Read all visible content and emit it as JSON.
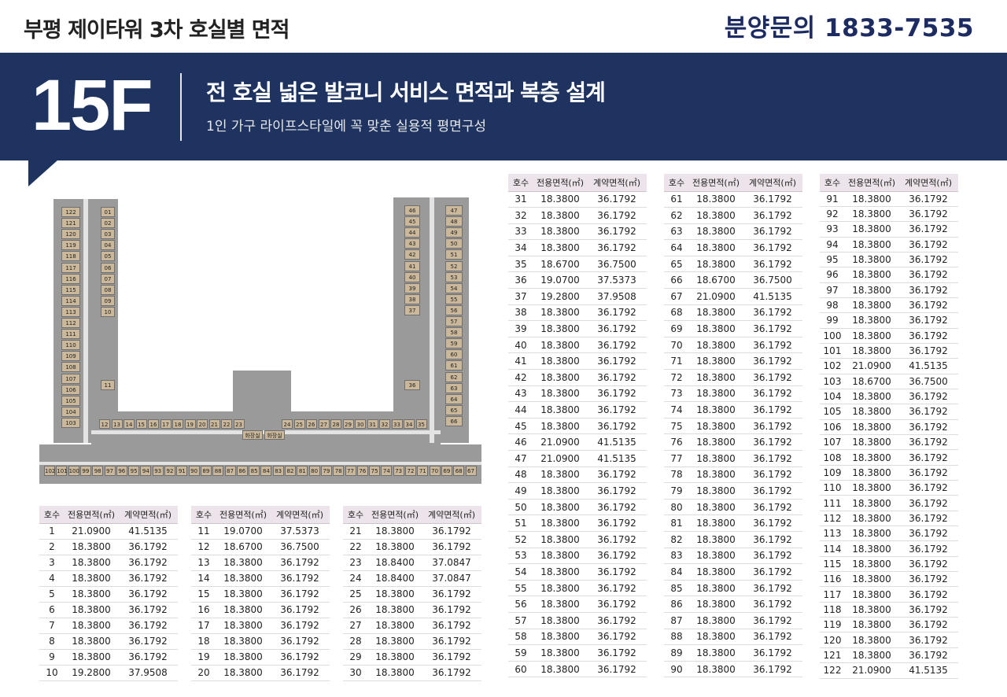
{
  "header": {
    "title": "부평 제이타워 3차 호실별 면적",
    "contact": "분양문의 1833-7535"
  },
  "banner": {
    "floor": "15F",
    "headline": "전 호실 넓은 발코니 서비스 면적과 복층 설계",
    "subline": "1인 가구 라이프스타일에 꼭 맞춘 실용적 평면구성"
  },
  "table_headers": {
    "no": "호수",
    "exclusive": "전용면적(㎡)",
    "contract": "계약면적(㎡)"
  },
  "floor_plan": {
    "left_wing_units": [
      "122",
      "121",
      "120",
      "119",
      "118",
      "117",
      "116",
      "115",
      "114",
      "113",
      "112",
      "111",
      "110",
      "109",
      "108",
      "107",
      "106",
      "105",
      "104",
      "103"
    ],
    "left_inner_units": [
      "01",
      "02",
      "03",
      "04",
      "05",
      "06",
      "07",
      "08",
      "09",
      "10",
      "11"
    ],
    "right_wing_units": [
      "47",
      "48",
      "49",
      "50",
      "51",
      "52",
      "53",
      "54",
      "55",
      "56",
      "57",
      "58",
      "59",
      "60",
      "61",
      "62",
      "63",
      "64",
      "65",
      "66"
    ],
    "right_inner_units": [
      "46",
      "45",
      "44",
      "43",
      "42",
      "41",
      "40",
      "39",
      "38",
      "37",
      "36"
    ],
    "middle_units": [
      "12",
      "13",
      "14",
      "15",
      "16",
      "17",
      "18",
      "19",
      "20",
      "21",
      "22",
      "23",
      "24",
      "25",
      "26",
      "27",
      "28",
      "29",
      "30",
      "31",
      "32",
      "33",
      "34",
      "35"
    ],
    "bottom_units": [
      "102",
      "101",
      "100",
      "99",
      "98",
      "97",
      "96",
      "95",
      "94",
      "93",
      "92",
      "91",
      "90",
      "89",
      "88",
      "87",
      "86",
      "85",
      "84",
      "83",
      "82",
      "81",
      "80",
      "79",
      "78",
      "77",
      "76",
      "75",
      "74",
      "73",
      "72",
      "71",
      "70",
      "69",
      "68",
      "67"
    ],
    "room_labels": [
      "화장실",
      "화장실"
    ]
  },
  "tables": [
    {
      "rows": [
        [
          "1",
          "21.0900",
          "41.5135"
        ],
        [
          "2",
          "18.3800",
          "36.1792"
        ],
        [
          "3",
          "18.3800",
          "36.1792"
        ],
        [
          "4",
          "18.3800",
          "36.1792"
        ],
        [
          "5",
          "18.3800",
          "36.1792"
        ],
        [
          "6",
          "18.3800",
          "36.1792"
        ],
        [
          "7",
          "18.3800",
          "36.1792"
        ],
        [
          "8",
          "18.3800",
          "36.1792"
        ],
        [
          "9",
          "18.3800",
          "36.1792"
        ],
        [
          "10",
          "19.2800",
          "37.9508"
        ]
      ]
    },
    {
      "rows": [
        [
          "11",
          "19.0700",
          "37.5373"
        ],
        [
          "12",
          "18.6700",
          "36.7500"
        ],
        [
          "13",
          "18.3800",
          "36.1792"
        ],
        [
          "14",
          "18.3800",
          "36.1792"
        ],
        [
          "15",
          "18.3800",
          "36.1792"
        ],
        [
          "16",
          "18.3800",
          "36.1792"
        ],
        [
          "17",
          "18.3800",
          "36.1792"
        ],
        [
          "18",
          "18.3800",
          "36.1792"
        ],
        [
          "19",
          "18.3800",
          "36.1792"
        ],
        [
          "20",
          "18.3800",
          "36.1792"
        ]
      ]
    },
    {
      "rows": [
        [
          "21",
          "18.3800",
          "36.1792"
        ],
        [
          "22",
          "18.3800",
          "36.1792"
        ],
        [
          "23",
          "18.8400",
          "37.0847"
        ],
        [
          "24",
          "18.8400",
          "37.0847"
        ],
        [
          "25",
          "18.3800",
          "36.1792"
        ],
        [
          "26",
          "18.3800",
          "36.1792"
        ],
        [
          "27",
          "18.3800",
          "36.1792"
        ],
        [
          "28",
          "18.3800",
          "36.1792"
        ],
        [
          "29",
          "18.3800",
          "36.1792"
        ],
        [
          "30",
          "18.3800",
          "36.1792"
        ]
      ]
    },
    {
      "rows": [
        [
          "31",
          "18.3800",
          "36.1792"
        ],
        [
          "32",
          "18.3800",
          "36.1792"
        ],
        [
          "33",
          "18.3800",
          "36.1792"
        ],
        [
          "34",
          "18.3800",
          "36.1792"
        ],
        [
          "35",
          "18.6700",
          "36.7500"
        ],
        [
          "36",
          "19.0700",
          "37.5373"
        ],
        [
          "37",
          "19.2800",
          "37.9508"
        ],
        [
          "38",
          "18.3800",
          "36.1792"
        ],
        [
          "39",
          "18.3800",
          "36.1792"
        ],
        [
          "40",
          "18.3800",
          "36.1792"
        ],
        [
          "41",
          "18.3800",
          "36.1792"
        ],
        [
          "42",
          "18.3800",
          "36.1792"
        ],
        [
          "43",
          "18.3800",
          "36.1792"
        ],
        [
          "44",
          "18.3800",
          "36.1792"
        ],
        [
          "45",
          "18.3800",
          "36.1792"
        ],
        [
          "46",
          "21.0900",
          "41.5135"
        ],
        [
          "47",
          "21.0900",
          "41.5135"
        ],
        [
          "48",
          "18.3800",
          "36.1792"
        ],
        [
          "49",
          "18.3800",
          "36.1792"
        ],
        [
          "50",
          "18.3800",
          "36.1792"
        ],
        [
          "51",
          "18.3800",
          "36.1792"
        ],
        [
          "52",
          "18.3800",
          "36.1792"
        ],
        [
          "53",
          "18.3800",
          "36.1792"
        ],
        [
          "54",
          "18.3800",
          "36.1792"
        ],
        [
          "55",
          "18.3800",
          "36.1792"
        ],
        [
          "56",
          "18.3800",
          "36.1792"
        ],
        [
          "57",
          "18.3800",
          "36.1792"
        ],
        [
          "58",
          "18.3800",
          "36.1792"
        ],
        [
          "59",
          "18.3800",
          "36.1792"
        ],
        [
          "60",
          "18.3800",
          "36.1792"
        ]
      ]
    },
    {
      "rows": [
        [
          "61",
          "18.3800",
          "36.1792"
        ],
        [
          "62",
          "18.3800",
          "36.1792"
        ],
        [
          "63",
          "18.3800",
          "36.1792"
        ],
        [
          "64",
          "18.3800",
          "36.1792"
        ],
        [
          "65",
          "18.3800",
          "36.1792"
        ],
        [
          "66",
          "18.6700",
          "36.7500"
        ],
        [
          "67",
          "21.0900",
          "41.5135"
        ],
        [
          "68",
          "18.3800",
          "36.1792"
        ],
        [
          "69",
          "18.3800",
          "36.1792"
        ],
        [
          "70",
          "18.3800",
          "36.1792"
        ],
        [
          "71",
          "18.3800",
          "36.1792"
        ],
        [
          "72",
          "18.3800",
          "36.1792"
        ],
        [
          "73",
          "18.3800",
          "36.1792"
        ],
        [
          "74",
          "18.3800",
          "36.1792"
        ],
        [
          "75",
          "18.3800",
          "36.1792"
        ],
        [
          "76",
          "18.3800",
          "36.1792"
        ],
        [
          "77",
          "18.3800",
          "36.1792"
        ],
        [
          "78",
          "18.3800",
          "36.1792"
        ],
        [
          "79",
          "18.3800",
          "36.1792"
        ],
        [
          "80",
          "18.3800",
          "36.1792"
        ],
        [
          "81",
          "18.3800",
          "36.1792"
        ],
        [
          "82",
          "18.3800",
          "36.1792"
        ],
        [
          "83",
          "18.3800",
          "36.1792"
        ],
        [
          "84",
          "18.3800",
          "36.1792"
        ],
        [
          "85",
          "18.3800",
          "36.1792"
        ],
        [
          "86",
          "18.3800",
          "36.1792"
        ],
        [
          "87",
          "18.3800",
          "36.1792"
        ],
        [
          "88",
          "18.3800",
          "36.1792"
        ],
        [
          "89",
          "18.3800",
          "36.1792"
        ],
        [
          "90",
          "18.3800",
          "36.1792"
        ]
      ]
    },
    {
      "rows": [
        [
          "91",
          "18.3800",
          "36.1792"
        ],
        [
          "92",
          "18.3800",
          "36.1792"
        ],
        [
          "93",
          "18.3800",
          "36.1792"
        ],
        [
          "94",
          "18.3800",
          "36.1792"
        ],
        [
          "95",
          "18.3800",
          "36.1792"
        ],
        [
          "96",
          "18.3800",
          "36.1792"
        ],
        [
          "97",
          "18.3800",
          "36.1792"
        ],
        [
          "98",
          "18.3800",
          "36.1792"
        ],
        [
          "99",
          "18.3800",
          "36.1792"
        ],
        [
          "100",
          "18.3800",
          "36.1792"
        ],
        [
          "101",
          "18.3800",
          "36.1792"
        ],
        [
          "102",
          "21.0900",
          "41.5135"
        ],
        [
          "103",
          "18.6700",
          "36.7500"
        ],
        [
          "104",
          "18.3800",
          "36.1792"
        ],
        [
          "105",
          "18.3800",
          "36.1792"
        ],
        [
          "106",
          "18.3800",
          "36.1792"
        ],
        [
          "107",
          "18.3800",
          "36.1792"
        ],
        [
          "108",
          "18.3800",
          "36.1792"
        ],
        [
          "109",
          "18.3800",
          "36.1792"
        ],
        [
          "110",
          "18.3800",
          "36.1792"
        ],
        [
          "111",
          "18.3800",
          "36.1792"
        ],
        [
          "112",
          "18.3800",
          "36.1792"
        ],
        [
          "113",
          "18.3800",
          "36.1792"
        ],
        [
          "114",
          "18.3800",
          "36.1792"
        ],
        [
          "115",
          "18.3800",
          "36.1792"
        ],
        [
          "116",
          "18.3800",
          "36.1792"
        ],
        [
          "117",
          "18.3800",
          "36.1792"
        ],
        [
          "118",
          "18.3800",
          "36.1792"
        ],
        [
          "119",
          "18.3800",
          "36.1792"
        ],
        [
          "120",
          "18.3800",
          "36.1792"
        ],
        [
          "121",
          "18.3800",
          "36.1792"
        ],
        [
          "122",
          "21.0900",
          "41.5135"
        ]
      ]
    }
  ]
}
